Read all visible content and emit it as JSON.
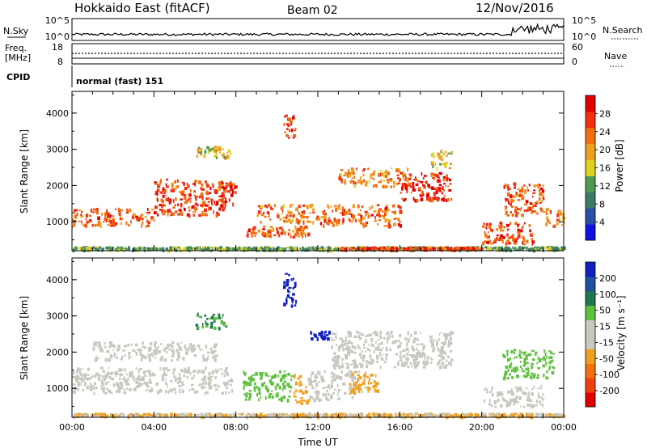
{
  "header": {
    "station": "Hokkaido East (fitACF)",
    "beam": "Beam 02",
    "date": "12/Nov/2016"
  },
  "top_panels": {
    "nsky_label": "N.Sky",
    "nsky_ticks": [
      "10^5",
      "10^0"
    ],
    "nsearch_label": "N.Search",
    "nsearch_ticks": [
      "10^5",
      "10^0"
    ],
    "freq_label_1": "Freq.",
    "freq_label_2": "[MHz]",
    "freq_ticks": [
      "18",
      "8"
    ],
    "nave_label": "Nave",
    "nave_ticks": [
      "60",
      "0"
    ],
    "cpid_label": "CPID",
    "cpid_text": "normal (fast) 151"
  },
  "colors": {
    "power_scale": [
      "#1010e0",
      "#2a4fa8",
      "#3d7a6a",
      "#4e9a52",
      "#e0d020",
      "#f0a020",
      "#f07010",
      "#f03010",
      "#e00000"
    ],
    "velocity_scale": [
      "#1020c0",
      "#2050a0",
      "#207850",
      "#60c040",
      "#c8c8c0",
      "#c8c8c0",
      "#f0a020",
      "#f07010",
      "#f04010",
      "#e00000"
    ]
  },
  "chart_data": [
    {
      "type": "heatmap",
      "name": "power",
      "ylabel": "Slant Range [km]",
      "yticks": [
        "4000",
        "3000",
        "2000",
        "1000"
      ],
      "yticks_values": [
        4000,
        3000,
        2000,
        1000
      ],
      "ylim": [
        200,
        4600
      ],
      "xticks": [
        "00:00",
        "04:00",
        "08:00",
        "12:00",
        "16:00",
        "20:00",
        "00:00"
      ],
      "xlim_hours": [
        0,
        24
      ],
      "colorbar_label": "Power [dB]",
      "colorbar_ticks": [
        "28",
        "24",
        "20",
        "16",
        "12",
        "8",
        "4"
      ],
      "bands": [
        {
          "start": 0.0,
          "end": 4.0,
          "r0": 900,
          "r1": 1400,
          "v": 24
        },
        {
          "start": 4.0,
          "end": 7.5,
          "r0": 1200,
          "r1": 2200,
          "v": 26
        },
        {
          "start": 6.0,
          "end": 7.8,
          "r0": 2800,
          "r1": 3100,
          "v": 18
        },
        {
          "start": 7.2,
          "end": 8.0,
          "r0": 1500,
          "r1": 2200,
          "v": 27
        },
        {
          "start": 8.5,
          "end": 11.5,
          "r0": 600,
          "r1": 900,
          "v": 24
        },
        {
          "start": 9.0,
          "end": 12.0,
          "r0": 1000,
          "r1": 1500,
          "v": 22
        },
        {
          "start": 10.3,
          "end": 10.9,
          "r0": 3300,
          "r1": 4000,
          "v": 26
        },
        {
          "start": 12.0,
          "end": 16.0,
          "r0": 900,
          "r1": 1500,
          "v": 24
        },
        {
          "start": 13.0,
          "end": 16.5,
          "r0": 2000,
          "r1": 2500,
          "v": 22
        },
        {
          "start": 16.0,
          "end": 18.5,
          "r0": 1600,
          "r1": 2400,
          "v": 27
        },
        {
          "start": 17.5,
          "end": 18.5,
          "r0": 2500,
          "r1": 3000,
          "v": 18
        },
        {
          "start": 20.0,
          "end": 22.5,
          "r0": 400,
          "r1": 1000,
          "v": 26
        },
        {
          "start": 21.0,
          "end": 23.0,
          "r0": 1200,
          "r1": 2100,
          "v": 25
        },
        {
          "start": 23.0,
          "end": 24.0,
          "r0": 900,
          "r1": 1400,
          "v": 22
        },
        {
          "start": 0.0,
          "end": 24.0,
          "r0": 250,
          "r1": 330,
          "v": 12
        },
        {
          "start": 13.0,
          "end": 20.0,
          "r0": 260,
          "r1": 320,
          "v": 26
        }
      ]
    },
    {
      "type": "heatmap",
      "name": "velocity",
      "ylabel": "Slant Range [km]",
      "yticks": [
        "4000",
        "3000",
        "2000",
        "1000"
      ],
      "yticks_values": [
        4000,
        3000,
        2000,
        1000
      ],
      "ylim": [
        200,
        4600
      ],
      "xticks": [
        "00:00",
        "04:00",
        "08:00",
        "12:00",
        "16:00",
        "20:00",
        "00:00"
      ],
      "xlim_hours": [
        0,
        24
      ],
      "xlabel": "Time UT",
      "colorbar_label": "Velocity [m s⁻¹]",
      "colorbar_ticks": [
        "200",
        "100",
        "50",
        "15",
        "-15",
        "-50",
        "-100",
        "-200"
      ],
      "bands": [
        {
          "start": 0.0,
          "end": 7.8,
          "r0": 900,
          "r1": 1600,
          "v": 0
        },
        {
          "start": 1.0,
          "end": 7.0,
          "r0": 1800,
          "r1": 2300,
          "v": 0
        },
        {
          "start": 6.0,
          "end": 7.5,
          "r0": 2700,
          "r1": 3100,
          "v": 60
        },
        {
          "start": 8.3,
          "end": 10.7,
          "r0": 700,
          "r1": 1500,
          "v": 40
        },
        {
          "start": 10.3,
          "end": 10.9,
          "r0": 3300,
          "r1": 4200,
          "v": 200
        },
        {
          "start": 10.8,
          "end": 11.5,
          "r0": 600,
          "r1": 1400,
          "v": -40
        },
        {
          "start": 11.5,
          "end": 14.0,
          "r0": 700,
          "r1": 1500,
          "v": 0
        },
        {
          "start": 13.5,
          "end": 15.0,
          "r0": 900,
          "r1": 1500,
          "v": -40
        },
        {
          "start": 11.6,
          "end": 12.6,
          "r0": 2400,
          "r1": 2600,
          "v": 200
        },
        {
          "start": 12.6,
          "end": 18.5,
          "r0": 1600,
          "r1": 2600,
          "v": 0
        },
        {
          "start": 20.0,
          "end": 23.0,
          "r0": 500,
          "r1": 1100,
          "v": 0
        },
        {
          "start": 21.0,
          "end": 23.5,
          "r0": 1300,
          "r1": 2100,
          "v": 40
        },
        {
          "start": 0.0,
          "end": 24.0,
          "r0": 250,
          "r1": 330,
          "v": -15
        }
      ]
    }
  ]
}
